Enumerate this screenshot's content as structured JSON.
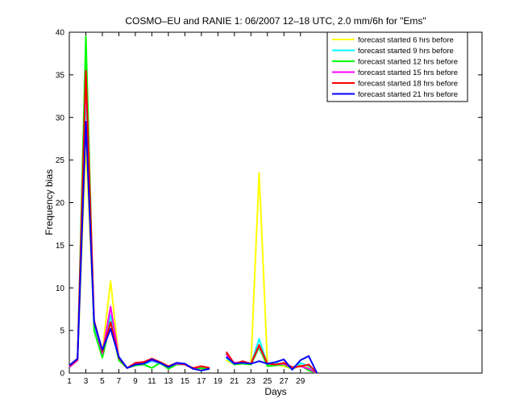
{
  "chart_data": {
    "type": "line",
    "title": "COSMO–EU and RANIE 1: 06/2007 12–18 UTC, 2.0 mm/6h for \"Ems\"",
    "xlabel": "Days",
    "ylabel": "Frequency bias",
    "xlim": [
      1,
      51
    ],
    "ylim": [
      0,
      40
    ],
    "xticks": [
      1,
      3,
      5,
      7,
      9,
      11,
      13,
      15,
      17,
      19,
      21,
      23,
      25,
      27,
      29
    ],
    "yticks": [
      0,
      5,
      10,
      15,
      20,
      25,
      30,
      35,
      40
    ],
    "grid": false,
    "legend_position": "top-right",
    "series": [
      {
        "name": "forecast started 6 hrs before",
        "color": "#ffff00",
        "values": [
          [
            1,
            0.8
          ],
          [
            2,
            1.5
          ],
          [
            3,
            27
          ],
          [
            4,
            6
          ],
          [
            5,
            2.5
          ],
          [
            6,
            10.8
          ],
          [
            7,
            1.8
          ],
          [
            8,
            0.6
          ],
          [
            9,
            1.0
          ],
          [
            10,
            1.1
          ],
          [
            11,
            1.6
          ],
          [
            12,
            1.2
          ],
          [
            13,
            0.8
          ],
          [
            14,
            1.1
          ],
          [
            15,
            1.0
          ],
          [
            16,
            0.6
          ],
          [
            17,
            0.5
          ],
          [
            18,
            0.5
          ],
          null,
          [
            20,
            1.5
          ],
          [
            21,
            1.0
          ],
          [
            22,
            1.3
          ],
          [
            23,
            1.1
          ],
          [
            24,
            23.5
          ],
          [
            25,
            1.0
          ],
          [
            26,
            1.0
          ],
          [
            27,
            0.8
          ],
          [
            28,
            0.5
          ],
          [
            29,
            0.8
          ],
          [
            30,
            0.7
          ],
          [
            31,
            0
          ]
        ]
      },
      {
        "name": "forecast started 9 hrs before",
        "color": "#00ffff",
        "values": [
          [
            1,
            0.8
          ],
          [
            2,
            1.5
          ],
          [
            3,
            33
          ],
          [
            4,
            5.5
          ],
          [
            5,
            2.2
          ],
          [
            6,
            6.8
          ],
          [
            7,
            1.8
          ],
          [
            8,
            0.6
          ],
          [
            9,
            1.0
          ],
          [
            10,
            1.0
          ],
          [
            11,
            1.4
          ],
          [
            12,
            1.1
          ],
          [
            13,
            0.7
          ],
          [
            14,
            1.1
          ],
          [
            15,
            1.0
          ],
          [
            16,
            0.5
          ],
          [
            17,
            0.6
          ],
          [
            18,
            0.5
          ],
          null,
          [
            20,
            1.8
          ],
          [
            21,
            1.0
          ],
          [
            22,
            1.2
          ],
          [
            23,
            1.0
          ],
          [
            24,
            4.0
          ],
          [
            25,
            1.0
          ],
          [
            26,
            1.2
          ],
          [
            27,
            1.0
          ],
          [
            28,
            0.5
          ],
          [
            29,
            1.2
          ],
          [
            30,
            0.8
          ],
          [
            31,
            0
          ]
        ]
      },
      {
        "name": "forecast started 12 hrs before",
        "color": "#00ff00",
        "values": [
          [
            1,
            0.7
          ],
          [
            2,
            1.5
          ],
          [
            3,
            39.5
          ],
          [
            4,
            5.0
          ],
          [
            5,
            1.8
          ],
          [
            6,
            6.0
          ],
          [
            7,
            1.5
          ],
          [
            8,
            0.6
          ],
          [
            9,
            0.9
          ],
          [
            10,
            1.0
          ],
          [
            11,
            0.6
          ],
          [
            12,
            1.2
          ],
          [
            13,
            0.5
          ],
          [
            14,
            1.0
          ],
          [
            15,
            1.0
          ],
          [
            16,
            0.5
          ],
          [
            17,
            0.6
          ],
          [
            18,
            0.5
          ],
          null,
          [
            20,
            2.3
          ],
          [
            21,
            1.0
          ],
          [
            22,
            1.1
          ],
          [
            23,
            1.0
          ],
          [
            24,
            3.0
          ],
          [
            25,
            0.8
          ],
          [
            26,
            0.9
          ],
          [
            27,
            1.0
          ],
          [
            28,
            0.5
          ],
          [
            29,
            0.9
          ],
          [
            30,
            0.3
          ],
          [
            31,
            0
          ]
        ]
      },
      {
        "name": "forecast started 15 hrs before",
        "color": "#ff00ff",
        "values": [
          [
            1,
            0.7
          ],
          [
            2,
            1.5
          ],
          [
            3,
            35
          ],
          [
            4,
            6.0
          ],
          [
            5,
            2.3
          ],
          [
            6,
            7.8
          ],
          [
            7,
            1.8
          ],
          [
            8,
            0.6
          ],
          [
            9,
            1.0
          ],
          [
            10,
            1.2
          ],
          [
            11,
            1.5
          ],
          [
            12,
            1.2
          ],
          [
            13,
            0.8
          ],
          [
            14,
            1.1
          ],
          [
            15,
            1.0
          ],
          [
            16,
            0.5
          ],
          [
            17,
            0.8
          ],
          [
            18,
            0.6
          ],
          null,
          [
            20,
            2.2
          ],
          [
            21,
            1.2
          ],
          [
            22,
            1.3
          ],
          [
            23,
            1.1
          ],
          [
            24,
            3.2
          ],
          [
            25,
            1.1
          ],
          [
            26,
            1.0
          ],
          [
            27,
            1.1
          ],
          [
            28,
            0.6
          ],
          [
            29,
            0.8
          ],
          [
            30,
            0.5
          ],
          [
            31,
            0
          ]
        ]
      },
      {
        "name": "forecast started 18 hrs before",
        "color": "#ff0000",
        "values": [
          [
            1,
            0.8
          ],
          [
            2,
            1.6
          ],
          [
            3,
            35.5
          ],
          [
            4,
            6.2
          ],
          [
            5,
            2.5
          ],
          [
            6,
            6.0
          ],
          [
            7,
            1.8
          ],
          [
            8,
            0.6
          ],
          [
            9,
            1.2
          ],
          [
            10,
            1.3
          ],
          [
            11,
            1.7
          ],
          [
            12,
            1.3
          ],
          [
            13,
            0.8
          ],
          [
            14,
            1.2
          ],
          [
            15,
            1.0
          ],
          [
            16,
            0.6
          ],
          [
            17,
            0.8
          ],
          [
            18,
            0.6
          ],
          null,
          [
            20,
            2.5
          ],
          [
            21,
            1.1
          ],
          [
            22,
            1.4
          ],
          [
            23,
            1.1
          ],
          [
            24,
            3.3
          ],
          [
            25,
            1.1
          ],
          [
            26,
            1.0
          ],
          [
            27,
            1.2
          ],
          [
            28,
            0.7
          ],
          [
            29,
            0.8
          ],
          [
            30,
            1.0
          ],
          [
            31,
            0
          ]
        ]
      },
      {
        "name": "forecast started 21 hrs before",
        "color": "#0000ff",
        "values": [
          [
            1,
            0.9
          ],
          [
            2,
            1.7
          ],
          [
            3,
            29.5
          ],
          [
            4,
            6.0
          ],
          [
            5,
            2.7
          ],
          [
            6,
            5.2
          ],
          [
            7,
            1.9
          ],
          [
            8,
            0.6
          ],
          [
            9,
            1.0
          ],
          [
            10,
            1.1
          ],
          [
            11,
            1.6
          ],
          [
            12,
            1.2
          ],
          [
            13,
            0.7
          ],
          [
            14,
            1.2
          ],
          [
            15,
            1.1
          ],
          [
            16,
            0.5
          ],
          [
            17,
            0.3
          ],
          [
            18,
            0.5
          ],
          null,
          [
            20,
            1.9
          ],
          [
            21,
            1.1
          ],
          [
            22,
            1.2
          ],
          [
            23,
            1.1
          ],
          [
            24,
            1.4
          ],
          [
            25,
            1.1
          ],
          [
            26,
            1.3
          ],
          [
            27,
            1.6
          ],
          [
            28,
            0.4
          ],
          [
            29,
            1.5
          ],
          [
            30,
            2.0
          ],
          [
            31,
            0
          ]
        ]
      }
    ]
  }
}
